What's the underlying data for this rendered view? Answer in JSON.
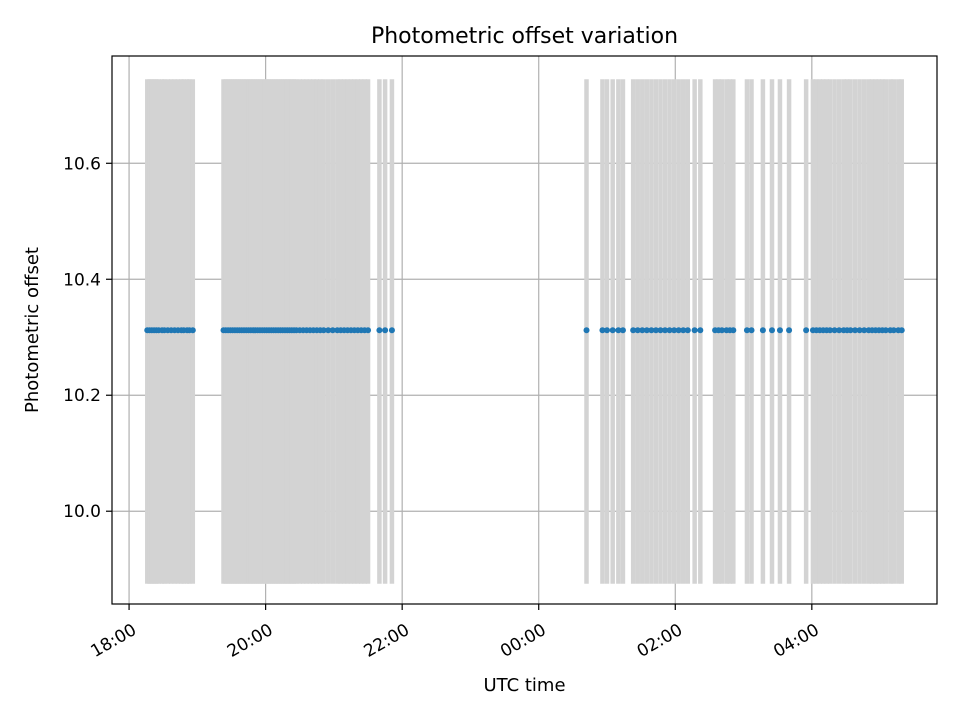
{
  "chart_data": {
    "type": "scatter",
    "title": "Photometric offset variation",
    "xlabel": "UTC time",
    "ylabel": "Photometric offset",
    "x_axis_type": "time",
    "xlim": [
      "17:45",
      "05:50 +1d"
    ],
    "ylim": [
      9.84,
      10.785
    ],
    "grid": true,
    "x_ticks": [
      "18:00",
      "20:00",
      "22:00",
      "00:00",
      "02:00",
      "04:00"
    ],
    "y_ticks": [
      "10.0",
      "10.2",
      "10.4",
      "10.6"
    ],
    "error_bar_color": "#d3d3d3",
    "marker_color": "#1f77b4",
    "series": [
      {
        "name": "",
        "error_bar_range": [
          9.875,
          10.745
        ],
        "y_value": 10.312,
        "times": [
          "18:16",
          "18:18",
          "18:20",
          "18:22",
          "18:24",
          "18:26",
          "18:29",
          "18:31",
          "18:34",
          "18:37",
          "18:40",
          "18:43",
          "18:46",
          "18:48",
          "18:51",
          "18:53",
          "18:56",
          "19:23",
          "19:25",
          "19:27",
          "19:29",
          "19:31",
          "19:33",
          "19:35",
          "19:37",
          "19:39",
          "19:41",
          "19:43",
          "19:45",
          "19:47",
          "19:49",
          "19:51",
          "19:53",
          "19:55",
          "19:57",
          "19:59",
          "20:01",
          "20:03",
          "20:05",
          "20:07",
          "20:09",
          "20:11",
          "20:13",
          "20:15",
          "20:17",
          "20:19",
          "20:21",
          "20:23",
          "20:25",
          "20:27",
          "20:30",
          "20:33",
          "20:36",
          "20:39",
          "20:42",
          "20:45",
          "20:48",
          "20:51",
          "20:55",
          "20:59",
          "21:03",
          "21:06",
          "21:09",
          "21:12",
          "21:15",
          "21:18",
          "21:21",
          "21:24",
          "21:27",
          "21:30",
          "21:40",
          "21:45",
          "21:51",
          "00:42",
          "00:56",
          "01:00",
          "01:05",
          "01:10",
          "01:14",
          "01:23",
          "01:27",
          "01:31",
          "01:35",
          "01:39",
          "01:43",
          "01:47",
          "01:51",
          "01:55",
          "01:59",
          "02:03",
          "02:07",
          "02:11",
          "02:17",
          "02:22",
          "02:35",
          "02:38",
          "02:41",
          "02:45",
          "02:48",
          "02:51",
          "03:03",
          "03:07",
          "03:17",
          "03:25",
          "03:32",
          "03:40",
          "03:55",
          "04:01",
          "04:04",
          "04:07",
          "04:10",
          "04:13",
          "04:16",
          "04:20",
          "04:24",
          "04:28",
          "04:31",
          "04:34",
          "04:38",
          "04:42",
          "04:46",
          "04:50",
          "04:53",
          "04:56",
          "04:59",
          "05:02",
          "05:05",
          "05:09",
          "05:12",
          "05:16",
          "05:19"
        ]
      }
    ]
  }
}
